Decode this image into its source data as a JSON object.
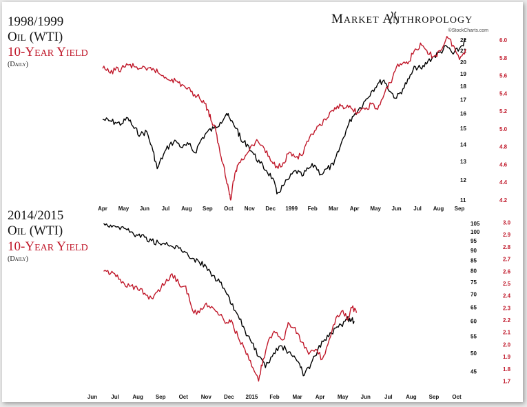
{
  "brand": {
    "name": "Market Anthropology",
    "source": "©StockCharts.com"
  },
  "chart_data": [
    {
      "type": "line",
      "title": "1998/1999",
      "subtitle": "(Daily)",
      "x_labels": [
        "Apr",
        "May",
        "Jun",
        "Jul",
        "Aug",
        "Sep",
        "Oct",
        "Nov",
        "Dec",
        "1999",
        "Feb",
        "Mar",
        "Apr",
        "May",
        "Jun",
        "Jul",
        "Aug",
        "Sep"
      ],
      "y_left": {
        "label": "Oil (WTI)",
        "ticks": [
          22,
          21,
          20,
          19,
          18,
          17,
          16,
          15,
          14,
          13,
          12,
          11
        ],
        "scale": "log",
        "range": [
          11,
          22
        ]
      },
      "y_right": {
        "label": "10-Year Yield",
        "ticks": [
          6.0,
          5.8,
          5.6,
          5.4,
          5.2,
          5.0,
          4.8,
          4.6,
          4.4,
          4.2
        ],
        "range": [
          4.2,
          6.0
        ]
      },
      "series": [
        {
          "name": "Oil (WTI)",
          "axis": "left",
          "color": "#000000",
          "points": [
            [
              0,
              15.6
            ],
            [
              0.3,
              15.5
            ],
            [
              0.6,
              15.4
            ],
            [
              0.9,
              15.3
            ],
            [
              1.2,
              15.7
            ],
            [
              1.5,
              15.0
            ],
            [
              1.8,
              14.6
            ],
            [
              2.1,
              14.8
            ],
            [
              2.4,
              13.6
            ],
            [
              2.6,
              12.6
            ],
            [
              2.9,
              13.4
            ],
            [
              3.2,
              14.0
            ],
            [
              3.5,
              14.2
            ],
            [
              3.8,
              13.8
            ],
            [
              4.1,
              14.0
            ],
            [
              4.4,
              13.5
            ],
            [
              4.7,
              14.3
            ],
            [
              5.0,
              14.8
            ],
            [
              5.3,
              15.0
            ],
            [
              5.6,
              15.4
            ],
            [
              5.9,
              16.0
            ],
            [
              6.1,
              15.5
            ],
            [
              6.4,
              15.0
            ],
            [
              6.6,
              14.2
            ],
            [
              6.9,
              14.0
            ],
            [
              7.2,
              13.4
            ],
            [
              7.5,
              12.9
            ],
            [
              7.8,
              12.5
            ],
            [
              8.1,
              12.1
            ],
            [
              8.3,
              11.3
            ],
            [
              8.6,
              11.7
            ],
            [
              8.9,
              12.1
            ],
            [
              9.2,
              12.5
            ],
            [
              9.5,
              12.2
            ],
            [
              9.8,
              12.6
            ],
            [
              10.1,
              12.8
            ],
            [
              10.4,
              12.3
            ],
            [
              10.7,
              12.6
            ],
            [
              11.0,
              12.8
            ],
            [
              11.3,
              13.8
            ],
            [
              11.6,
              14.9
            ],
            [
              11.9,
              15.8
            ],
            [
              12.2,
              16.3
            ],
            [
              12.5,
              16.9
            ],
            [
              12.8,
              17.6
            ],
            [
              13.1,
              18.2
            ],
            [
              13.4,
              18.5
            ],
            [
              13.7,
              17.6
            ],
            [
              14.0,
              17.1
            ],
            [
              14.3,
              17.8
            ],
            [
              14.6,
              18.6
            ],
            [
              14.9,
              19.6
            ],
            [
              15.2,
              19.4
            ],
            [
              15.5,
              20.1
            ],
            [
              15.8,
              20.5
            ],
            [
              16.1,
              20.9
            ],
            [
              16.4,
              21.4
            ],
            [
              16.7,
              20.7
            ],
            [
              17.0,
              21.2
            ],
            [
              17.3,
              22.0
            ]
          ]
        },
        {
          "name": "10-Year Yield",
          "axis": "right",
          "color": "#c0182a",
          "points": [
            [
              0,
              5.68
            ],
            [
              0.3,
              5.64
            ],
            [
              0.6,
              5.66
            ],
            [
              0.9,
              5.68
            ],
            [
              1.2,
              5.72
            ],
            [
              1.5,
              5.7
            ],
            [
              1.8,
              5.68
            ],
            [
              2.1,
              5.66
            ],
            [
              2.4,
              5.68
            ],
            [
              2.7,
              5.62
            ],
            [
              3.0,
              5.58
            ],
            [
              3.3,
              5.56
            ],
            [
              3.6,
              5.52
            ],
            [
              3.9,
              5.48
            ],
            [
              4.2,
              5.42
            ],
            [
              4.5,
              5.37
            ],
            [
              4.8,
              5.32
            ],
            [
              5.0,
              5.22
            ],
            [
              5.2,
              5.08
            ],
            [
              5.4,
              4.97
            ],
            [
              5.6,
              4.72
            ],
            [
              5.8,
              4.56
            ],
            [
              6.0,
              4.32
            ],
            [
              6.1,
              4.2
            ],
            [
              6.3,
              4.5
            ],
            [
              6.5,
              4.62
            ],
            [
              6.8,
              4.7
            ],
            [
              7.1,
              4.82
            ],
            [
              7.4,
              4.86
            ],
            [
              7.7,
              4.78
            ],
            [
              8.0,
              4.64
            ],
            [
              8.3,
              4.58
            ],
            [
              8.6,
              4.62
            ],
            [
              8.9,
              4.74
            ],
            [
              9.2,
              4.68
            ],
            [
              9.5,
              4.7
            ],
            [
              9.8,
              4.86
            ],
            [
              10.1,
              4.98
            ],
            [
              10.4,
              5.04
            ],
            [
              10.7,
              5.12
            ],
            [
              11.0,
              5.2
            ],
            [
              11.3,
              5.28
            ],
            [
              11.6,
              5.24
            ],
            [
              11.9,
              5.22
            ],
            [
              12.2,
              5.18
            ],
            [
              12.5,
              5.22
            ],
            [
              12.8,
              5.28
            ],
            [
              13.1,
              5.22
            ],
            [
              13.4,
              5.38
            ],
            [
              13.7,
              5.52
            ],
            [
              14.0,
              5.7
            ],
            [
              14.3,
              5.74
            ],
            [
              14.6,
              5.76
            ],
            [
              14.9,
              5.9
            ],
            [
              15.2,
              5.94
            ],
            [
              15.5,
              5.84
            ],
            [
              15.8,
              5.82
            ],
            [
              16.1,
              5.88
            ],
            [
              16.4,
              6.04
            ],
            [
              16.7,
              5.94
            ],
            [
              17.0,
              5.78
            ],
            [
              17.3,
              5.9
            ]
          ]
        }
      ]
    },
    {
      "type": "line",
      "title": "2014/2015",
      "subtitle": "(Daily)",
      "x_labels": [
        "Jun",
        "Jul",
        "Aug",
        "Sep",
        "Oct",
        "Nov",
        "Dec",
        "2015",
        "Feb",
        "Mar",
        "Apr",
        "May",
        "Jun",
        "Jul",
        "Aug",
        "Sep",
        "Oct"
      ],
      "y_left": {
        "label": "Oil (WTI)",
        "ticks": [
          105,
          100,
          95,
          90,
          85,
          80,
          75,
          70,
          65,
          60,
          55,
          50,
          45
        ],
        "scale": "log",
        "range": [
          42,
          107
        ]
      },
      "y_right": {
        "label": "10-Year Yield",
        "ticks": [
          3.0,
          2.9,
          2.8,
          2.7,
          2.6,
          2.5,
          2.4,
          2.3,
          2.2,
          2.1,
          2.0,
          1.9,
          1.8,
          1.7
        ],
        "range": [
          1.68,
          3.02
        ]
      },
      "series": [
        {
          "name": "Oil (WTI)",
          "axis": "left",
          "color": "#000000",
          "points": [
            [
              0.5,
              105
            ],
            [
              0.8,
              104
            ],
            [
              1.1,
              103
            ],
            [
              1.4,
              102
            ],
            [
              1.7,
              100
            ],
            [
              2.0,
              98
            ],
            [
              2.3,
              97
            ],
            [
              2.6,
              95
            ],
            [
              2.9,
              94
            ],
            [
              3.2,
              93
            ],
            [
              3.5,
              92
            ],
            [
              3.8,
              91
            ],
            [
              4.1,
              89
            ],
            [
              4.4,
              86
            ],
            [
              4.7,
              84
            ],
            [
              5.0,
              82
            ],
            [
              5.3,
              78
            ],
            [
              5.6,
              75
            ],
            [
              5.9,
              70
            ],
            [
              6.1,
              66
            ],
            [
              6.4,
              62
            ],
            [
              6.7,
              57
            ],
            [
              7.0,
              53
            ],
            [
              7.3,
              49
            ],
            [
              7.6,
              46
            ],
            [
              7.9,
              49
            ],
            [
              8.2,
              52
            ],
            [
              8.5,
              51
            ],
            [
              8.8,
              49
            ],
            [
              9.1,
              47
            ],
            [
              9.3,
              44
            ],
            [
              9.6,
              47
            ],
            [
              9.9,
              51
            ],
            [
              10.2,
              54
            ],
            [
              10.5,
              56
            ],
            [
              10.8,
              58
            ],
            [
              11.1,
              60
            ],
            [
              11.3,
              61
            ],
            [
              11.5,
              60
            ]
          ]
        },
        {
          "name": "10-Year Yield",
          "axis": "right",
          "color": "#c0182a",
          "points": [
            [
              0.5,
              2.6
            ],
            [
              0.8,
              2.58
            ],
            [
              1.1,
              2.57
            ],
            [
              1.4,
              2.5
            ],
            [
              1.7,
              2.48
            ],
            [
              2.0,
              2.45
            ],
            [
              2.3,
              2.42
            ],
            [
              2.6,
              2.38
            ],
            [
              2.9,
              2.45
            ],
            [
              3.2,
              2.5
            ],
            [
              3.5,
              2.58
            ],
            [
              3.8,
              2.5
            ],
            [
              4.1,
              2.48
            ],
            [
              4.4,
              2.28
            ],
            [
              4.7,
              2.26
            ],
            [
              5.0,
              2.34
            ],
            [
              5.3,
              2.3
            ],
            [
              5.6,
              2.24
            ],
            [
              5.9,
              2.18
            ],
            [
              6.1,
              2.2
            ],
            [
              6.4,
              2.06
            ],
            [
              6.7,
              1.96
            ],
            [
              7.0,
              1.82
            ],
            [
              7.3,
              1.7
            ],
            [
              7.5,
              1.88
            ],
            [
              7.8,
              2.06
            ],
            [
              8.1,
              2.1
            ],
            [
              8.4,
              2.04
            ],
            [
              8.6,
              2.18
            ],
            [
              8.9,
              2.14
            ],
            [
              9.2,
              2.02
            ],
            [
              9.5,
              1.92
            ],
            [
              9.8,
              1.96
            ],
            [
              10.1,
              1.88
            ],
            [
              10.4,
              2.04
            ],
            [
              10.7,
              2.22
            ],
            [
              11.0,
              2.28
            ],
            [
              11.2,
              2.2
            ],
            [
              11.4,
              2.3
            ],
            [
              11.6,
              2.26
            ]
          ]
        }
      ]
    }
  ]
}
